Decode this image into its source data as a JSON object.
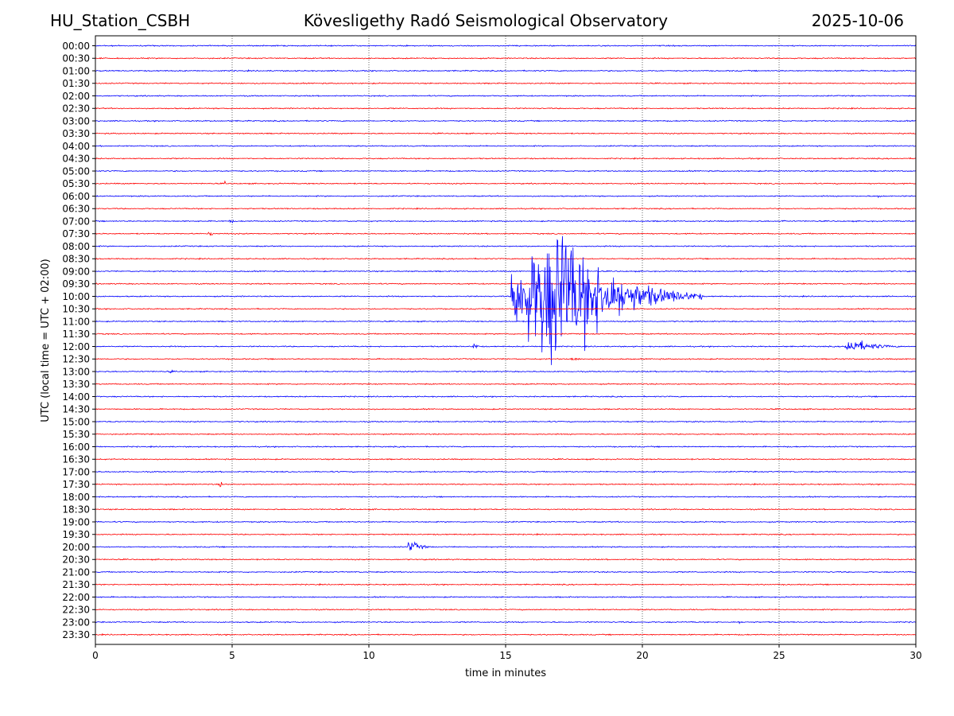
{
  "header": {
    "station": "HU_Station_CSBH",
    "observatory": "Kövesligethy Radó Seismological Observatory",
    "date": "2025-10-06"
  },
  "chart_data": {
    "type": "line",
    "subtype": "helicorder",
    "xlabel": "time in minutes",
    "ylabel": "UTC (local time = UTC + 02:00)",
    "xlim": [
      0,
      30
    ],
    "x_ticks": [
      0,
      5,
      10,
      15,
      20,
      25,
      30
    ],
    "x_gridlines": [
      5,
      10,
      15,
      20,
      25
    ],
    "grid_style": "dotted vertical",
    "row_labels": [
      "00:00",
      "00:30",
      "01:00",
      "01:30",
      "02:00",
      "02:30",
      "03:00",
      "03:30",
      "04:00",
      "04:30",
      "05:00",
      "05:30",
      "06:00",
      "06:30",
      "07:00",
      "07:30",
      "08:00",
      "08:30",
      "09:00",
      "09:30",
      "10:00",
      "10:30",
      "11:00",
      "11:30",
      "12:00",
      "12:30",
      "13:00",
      "13:30",
      "14:00",
      "14:30",
      "15:00",
      "15:30",
      "16:00",
      "16:30",
      "17:00",
      "17:30",
      "18:00",
      "18:30",
      "19:00",
      "19:30",
      "20:00",
      "20:30",
      "21:00",
      "21:30",
      "22:00",
      "22:30",
      "23:00",
      "23:30"
    ],
    "row_colors": [
      "#0000ff",
      "#ff0000"
    ],
    "noise_amplitude": 0.04,
    "events": [
      {
        "row": "05:30",
        "start": 4.7,
        "duration": 0.3,
        "amplitude": 0.15
      },
      {
        "row": "06:00",
        "start": 28.6,
        "duration": 0.3,
        "amplitude": 0.2
      },
      {
        "row": "07:00",
        "start": 4.9,
        "duration": 0.4,
        "amplitude": 0.2
      },
      {
        "row": "07:00",
        "start": 25.1,
        "duration": 0.3,
        "amplitude": 0.2
      },
      {
        "row": "07:30",
        "start": 4.1,
        "duration": 0.6,
        "amplitude": 0.2
      },
      {
        "row": "10:00",
        "start": 15.2,
        "duration": 7.0,
        "amplitude": 5.5,
        "peak": 17.0
      },
      {
        "row": "12:00",
        "start": 13.8,
        "duration": 0.4,
        "amplitude": 0.35
      },
      {
        "row": "12:00",
        "start": 27.4,
        "duration": 2.6,
        "amplitude": 0.6
      },
      {
        "row": "12:30",
        "start": 17.4,
        "duration": 0.5,
        "amplitude": 0.3
      },
      {
        "row": "13:00",
        "start": 2.7,
        "duration": 0.3,
        "amplitude": 0.2
      },
      {
        "row": "17:30",
        "start": 4.5,
        "duration": 0.5,
        "amplitude": 0.25
      },
      {
        "row": "20:00",
        "start": 11.4,
        "duration": 1.2,
        "amplitude": 0.5
      },
      {
        "row": "23:00",
        "start": 23.5,
        "duration": 0.5,
        "amplitude": 0.1
      }
    ]
  }
}
